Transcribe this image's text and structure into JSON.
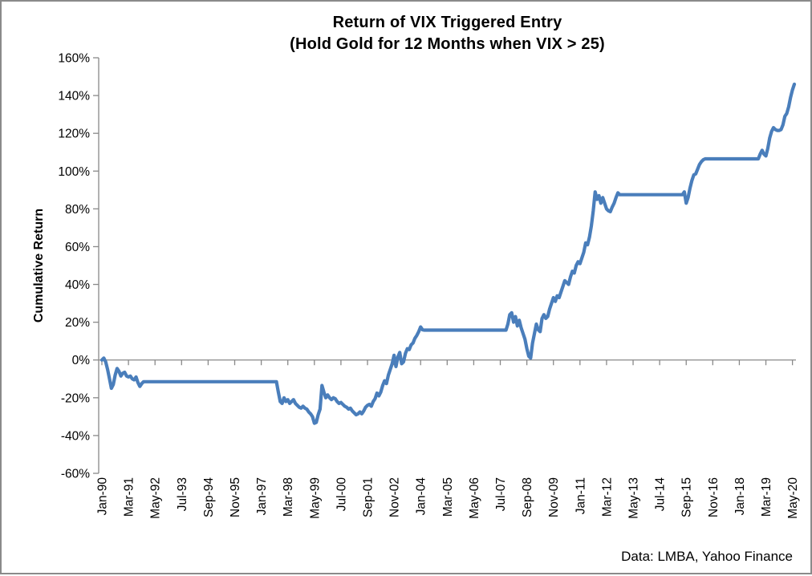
{
  "title": {
    "line1": "Return of VIX Triggered Entry",
    "line2": "(Hold Gold for 12 Months when VIX > 25)"
  },
  "source_note": "Data: LMBA, Yahoo Finance",
  "chart_data": {
    "type": "line",
    "title": "Return of VIX Triggered Entry (Hold Gold for 12 Months when VIX > 25)",
    "xlabel": "",
    "ylabel": "Cumulative Return",
    "ylim": [
      -60,
      160
    ],
    "y_tick_step": 20,
    "y_tick_labels": [
      "160%",
      "140%",
      "120%",
      "100%",
      "80%",
      "60%",
      "40%",
      "20%",
      "0%",
      "-20%",
      "-40%",
      "-60%"
    ],
    "x_tick_labels": [
      "Jan-90",
      "Mar-91",
      "May-92",
      "Jul-93",
      "Sep-94",
      "Nov-95",
      "Jan-97",
      "Mar-98",
      "May-99",
      "Jul-00",
      "Sep-01",
      "Nov-02",
      "Jan-04",
      "Mar-05",
      "May-06",
      "Jul-07",
      "Sep-08",
      "Nov-09",
      "Jan-11",
      "Mar-12",
      "May-13",
      "Jul-14",
      "Sep-15",
      "Nov-16",
      "Jan-18",
      "Mar-19",
      "May-20"
    ],
    "x_tick_month_interval": 14,
    "grid": false,
    "legend": "none",
    "line_color": "#4a7ebb",
    "axis_color": "#898989",
    "series": [
      {
        "name": "Cumulative Return (%)",
        "start_month": "Jan-1990",
        "frequency": "monthly",
        "values": [
          0,
          1,
          -1,
          -5,
          -10,
          -15,
          -13,
          -8,
          -4.5,
          -6,
          -8.5,
          -7,
          -6.5,
          -8.5,
          -9,
          -8.5,
          -10,
          -10.5,
          -9,
          -12,
          -14,
          -12.5,
          -11.5,
          -11.5,
          -11.5,
          -11.5,
          -11.5,
          -11.5,
          -11.5,
          -11.5,
          -11.5,
          -11.5,
          -11.5,
          -11.5,
          -11.5,
          -11.5,
          -11.5,
          -11.5,
          -11.5,
          -11.5,
          -11.5,
          -11.5,
          -11.5,
          -11.5,
          -11.5,
          -11.5,
          -11.5,
          -11.5,
          -11.5,
          -11.5,
          -11.5,
          -11.5,
          -11.5,
          -11.5,
          -11.5,
          -11.5,
          -11.5,
          -11.5,
          -11.5,
          -11.5,
          -11.5,
          -11.5,
          -11.5,
          -11.5,
          -11.5,
          -11.5,
          -11.5,
          -11.5,
          -11.5,
          -11.5,
          -11.5,
          -11.5,
          -11.5,
          -11.5,
          -11.5,
          -11.5,
          -11.5,
          -11.5,
          -11.5,
          -11.5,
          -11.5,
          -11.5,
          -11.5,
          -11.5,
          -11.5,
          -11.5,
          -11.5,
          -11.5,
          -11.5,
          -11.5,
          -11.5,
          -11.5,
          -11.5,
          -17,
          -22,
          -23,
          -20,
          -22,
          -21,
          -23,
          -22,
          -21,
          -23,
          -24,
          -25,
          -25.5,
          -24.5,
          -25.5,
          -26,
          -27.5,
          -28.5,
          -30,
          -33.5,
          -33,
          -29,
          -26,
          -13.5,
          -17,
          -20,
          -18.5,
          -20,
          -21,
          -20,
          -20.5,
          -22,
          -23,
          -22.5,
          -23.5,
          -24.5,
          -25,
          -26,
          -25.5,
          -27,
          -28,
          -29,
          -28.5,
          -27.5,
          -28.5,
          -27,
          -25,
          -24,
          -23.5,
          -24.5,
          -22,
          -20.5,
          -17.5,
          -19,
          -17,
          -13.5,
          -11,
          -12.5,
          -8,
          -5,
          -2,
          2.5,
          -3.5,
          1.5,
          4,
          -2,
          -1,
          3.5,
          6,
          5.5,
          8,
          9,
          11.5,
          13,
          15,
          17.5,
          16,
          15.8,
          15.8,
          15.8,
          15.8,
          15.8,
          15.8,
          15.8,
          15.8,
          15.8,
          15.8,
          15.8,
          15.8,
          15.8,
          15.8,
          15.8,
          15.8,
          15.8,
          15.8,
          15.8,
          15.8,
          15.8,
          15.8,
          15.8,
          15.8,
          15.8,
          15.8,
          15.8,
          15.8,
          15.8,
          15.8,
          15.8,
          15.8,
          15.8,
          15.8,
          15.8,
          15.8,
          15.8,
          15.8,
          15.8,
          15.8,
          15.8,
          15.8,
          15.8,
          15.8,
          19,
          24,
          25,
          20,
          23,
          18,
          21,
          17,
          14,
          11,
          6,
          2,
          1,
          9,
          14,
          19,
          16,
          15,
          22,
          24,
          22,
          23,
          27,
          30,
          33,
          31,
          34,
          33,
          36,
          39,
          42,
          41,
          40,
          44,
          47,
          46,
          50,
          52,
          51,
          54,
          57,
          62,
          61,
          65,
          71,
          79,
          89,
          85,
          87,
          83,
          86,
          83,
          80,
          79,
          78.5,
          81,
          83,
          86,
          88.5,
          87.5,
          87.5,
          87.5,
          87.5,
          87.5,
          87.5,
          87.5,
          87.5,
          87.5,
          87.5,
          87.5,
          87.5,
          87.5,
          87.5,
          87.5,
          87.5,
          87.5,
          87.5,
          87.5,
          87.5,
          87.5,
          87.5,
          87.5,
          87.5,
          87.5,
          87.5,
          87.5,
          87.5,
          87.5,
          87.5,
          87.5,
          87.5,
          87.5,
          87.5,
          89,
          83,
          86,
          91,
          95,
          98,
          98.5,
          101,
          103.5,
          105,
          106,
          106.5,
          106.5,
          106.5,
          106.5,
          106.5,
          106.5,
          106.5,
          106.5,
          106.5,
          106.5,
          106.5,
          106.5,
          106.5,
          106.5,
          106.5,
          106.5,
          106.5,
          106.5,
          106.5,
          106.5,
          106.5,
          106.5,
          106.5,
          106.5,
          106.5,
          106.5,
          106.5,
          106.5,
          106.5,
          109,
          111,
          109,
          108,
          112,
          117.5,
          121,
          123,
          122,
          121.5,
          121.5,
          122,
          124.5,
          129,
          130.5,
          134,
          139,
          143,
          146
        ]
      }
    ]
  }
}
